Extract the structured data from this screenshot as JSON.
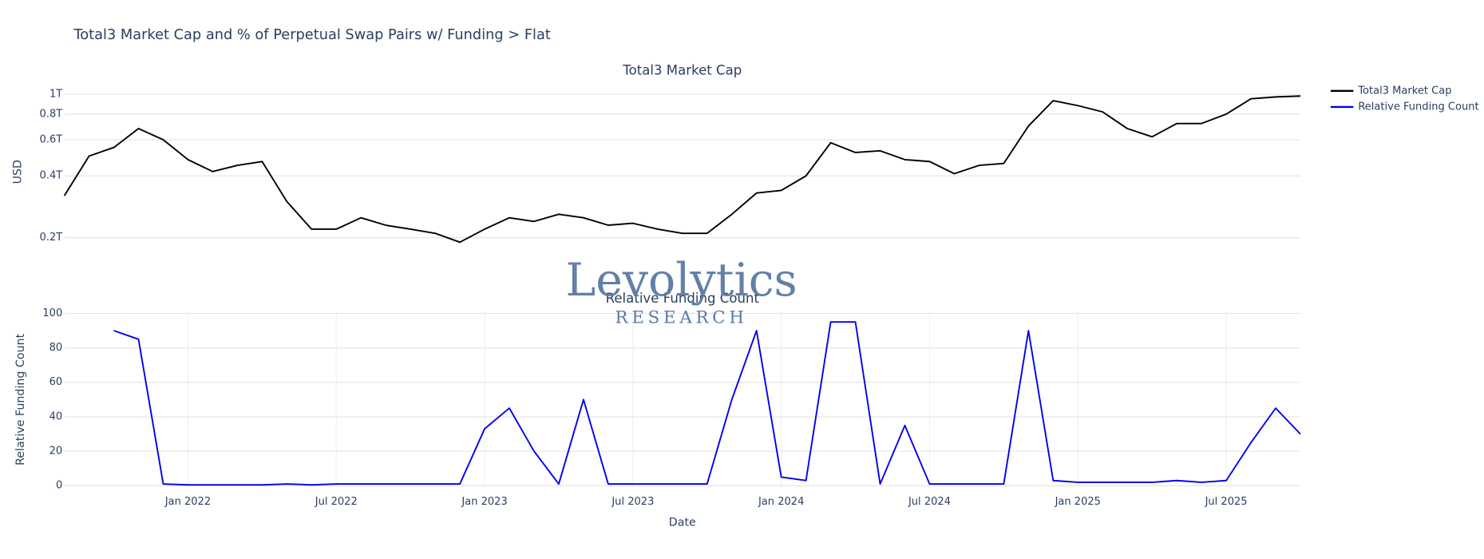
{
  "title": "Total3 Market Cap and % of Perpetual Swap Pairs w/ Funding > Flat",
  "watermark": {
    "name": "Levolytics",
    "subtitle": "RESEARCH"
  },
  "chart_data": [
    {
      "type": "line",
      "title": "Total3 Market Cap",
      "y_label": "USD",
      "log_y": true,
      "grid": true,
      "x": [
        "2021-08",
        "2021-09",
        "2021-10",
        "2021-11",
        "2021-12",
        "2022-01",
        "2022-02",
        "2022-03",
        "2022-04",
        "2022-05",
        "2022-06",
        "2022-07",
        "2022-08",
        "2022-09",
        "2022-10",
        "2022-11",
        "2022-12",
        "2023-01",
        "2023-02",
        "2023-03",
        "2023-04",
        "2023-05",
        "2023-06",
        "2023-07",
        "2023-08",
        "2023-09",
        "2023-10",
        "2023-11",
        "2023-12",
        "2024-01",
        "2024-02",
        "2024-03",
        "2024-04",
        "2024-05",
        "2024-06",
        "2024-07",
        "2024-08",
        "2024-09",
        "2024-10",
        "2024-11",
        "2024-12",
        "2025-01",
        "2025-02",
        "2025-03",
        "2025-04",
        "2025-05",
        "2025-06",
        "2025-07",
        "2025-08",
        "2025-09",
        "2025-10"
      ],
      "series": [
        {
          "name": "Total3 Market Cap",
          "color": "#000000",
          "values": [
            320000000000.0,
            500000000000.0,
            550000000000.0,
            680000000000.0,
            600000000000.0,
            480000000000.0,
            420000000000.0,
            450000000000.0,
            470000000000.0,
            300000000000.0,
            220000000000.0,
            220000000000.0,
            250000000000.0,
            230000000000.0,
            220000000000.0,
            210000000000.0,
            190000000000.0,
            220000000000.0,
            250000000000.0,
            240000000000.0,
            260000000000.0,
            250000000000.0,
            230000000000.0,
            235000000000.0,
            220000000000.0,
            210000000000.0,
            210000000000.0,
            260000000000.0,
            330000000000.0,
            340000000000.0,
            400000000000.0,
            580000000000.0,
            520000000000.0,
            530000000000.0,
            480000000000.0,
            470000000000.0,
            410000000000.0,
            450000000000.0,
            460000000000.0,
            700000000000.0,
            930000000000.0,
            880000000000.0,
            820000000000.0,
            680000000000.0,
            620000000000.0,
            720000000000.0,
            720000000000.0,
            800000000000.0,
            950000000000.0,
            970000000000.0,
            980000000000.0
          ]
        }
      ],
      "xlim": [
        "2021-08",
        "2025-10"
      ],
      "ylim": [
        155000000000.0,
        1130000000000.0
      ],
      "yticks": [
        {
          "value": 200000000000.0,
          "label": "0.2T"
        },
        {
          "value": 400000000000.0,
          "label": "0.4T"
        },
        {
          "value": 600000000000.0,
          "label": "0.6T"
        },
        {
          "value": 800000000000.0,
          "label": "0.8T"
        },
        {
          "value": 1000000000000.0,
          "label": "1T"
        }
      ]
    },
    {
      "type": "line",
      "title": "Relative Funding Count",
      "y_label": "Relative Funding Count",
      "x_label": "Date",
      "grid": true,
      "x": [
        "2021-10",
        "2021-11",
        "2021-12",
        "2022-01",
        "2022-02",
        "2022-03",
        "2022-04",
        "2022-05",
        "2022-06",
        "2022-07",
        "2022-08",
        "2022-09",
        "2022-10",
        "2022-11",
        "2022-12",
        "2023-01",
        "2023-02",
        "2023-03",
        "2023-04",
        "2023-05",
        "2023-06",
        "2023-07",
        "2023-08",
        "2023-09",
        "2023-10",
        "2023-11",
        "2023-12",
        "2024-01",
        "2024-02",
        "2024-03",
        "2024-04",
        "2024-05",
        "2024-06",
        "2024-07",
        "2024-08",
        "2024-09",
        "2024-10",
        "2024-11",
        "2024-12",
        "2025-01",
        "2025-02",
        "2025-03",
        "2025-04",
        "2025-05",
        "2025-06",
        "2025-07",
        "2025-08",
        "2025-09",
        "2025-10"
      ],
      "series": [
        {
          "name": "Relative Funding Count",
          "color": "#0000ee",
          "values": [
            90,
            85,
            1,
            0.5,
            0.5,
            0.5,
            0.5,
            1,
            0.5,
            1,
            1,
            1,
            1,
            1,
            1,
            33,
            45,
            20,
            1,
            50,
            1,
            1,
            1,
            1,
            1,
            50,
            90,
            5,
            3,
            95,
            95,
            1,
            35,
            1,
            1,
            1,
            1,
            90,
            3,
            2,
            2,
            2,
            2,
            3,
            2,
            3,
            25,
            45,
            30
          ]
        }
      ],
      "xlim": [
        "2021-08",
        "2025-10"
      ],
      "ylim": [
        0,
        100
      ],
      "yticks": [
        0,
        20,
        40,
        60,
        80,
        100
      ],
      "xticks": [
        {
          "value": "2022-01",
          "label": "Jan 2022"
        },
        {
          "value": "2022-07",
          "label": "Jul 2022"
        },
        {
          "value": "2023-01",
          "label": "Jan 2023"
        },
        {
          "value": "2023-07",
          "label": "Jul 2023"
        },
        {
          "value": "2024-01",
          "label": "Jan 2024"
        },
        {
          "value": "2024-07",
          "label": "Jul 2024"
        },
        {
          "value": "2025-01",
          "label": "Jan 2025"
        },
        {
          "value": "2025-07",
          "label": "Jul 2025"
        }
      ]
    }
  ]
}
